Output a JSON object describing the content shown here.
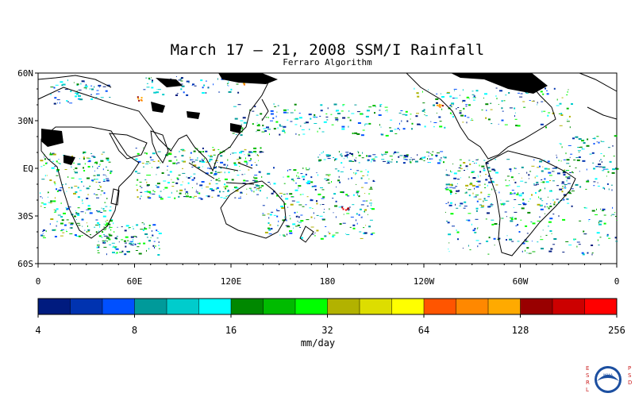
{
  "title": "March 17 – 21, 2008 SSM/I Rainfall",
  "subtitle": "Ferraro Algorithm",
  "map": {
    "lat_ticks": [
      "60N",
      "30N",
      "EQ",
      "30S",
      "60S"
    ],
    "lon_ticks": [
      "0",
      "60E",
      "120E",
      "180",
      "120W",
      "60W",
      "0"
    ],
    "land_color": "#000000",
    "background": "#ffffff"
  },
  "colorbar": {
    "unit": "mm/day",
    "tick_labels": [
      "4",
      "8",
      "16",
      "32",
      "64",
      "128",
      "256"
    ],
    "colors": [
      "#001b7f",
      "#0033b0",
      "#0050ff",
      "#009a9a",
      "#00cccc",
      "#00ffff",
      "#008800",
      "#00bb00",
      "#00ff00",
      "#b2b200",
      "#dddd00",
      "#ffff00",
      "#ff5500",
      "#ff8800",
      "#ffaa00",
      "#990000",
      "#cc0000",
      "#ff0000"
    ]
  },
  "logo": {
    "left_text": "ESRL",
    "right_text": "PSD",
    "badge_text": "NOAA"
  }
}
